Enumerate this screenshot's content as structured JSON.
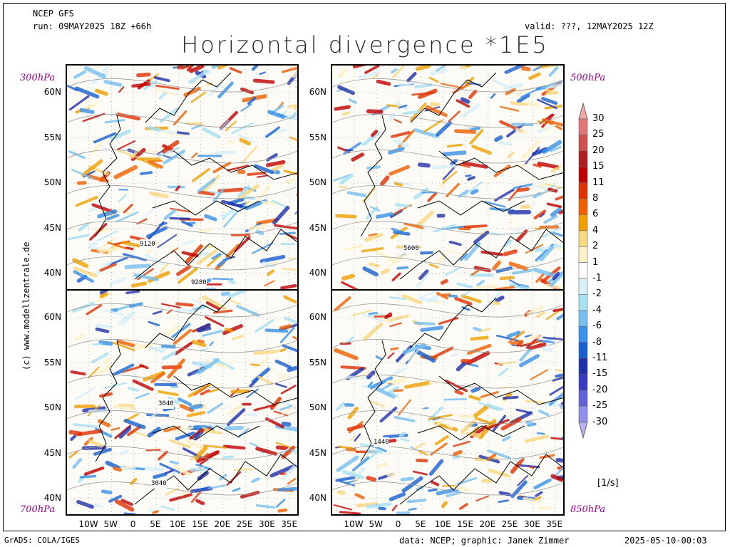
{
  "header": {
    "model": "NCEP GFS",
    "run": "run: 09MAY2025 18Z +66h",
    "valid": "valid: ???, 12MAY2025 12Z",
    "title": "Horizontal divergence *1E5"
  },
  "panels": [
    {
      "level": "300hPa",
      "contour_label": "9120",
      "contour_label2": "9280"
    },
    {
      "level": "500hPa",
      "contour_label": "5600"
    },
    {
      "level": "700hPa",
      "contour_label": "3040",
      "contour_label2": "3040"
    },
    {
      "level": "850hPa",
      "contour_label": "1440"
    }
  ],
  "lat_labels": [
    "60N",
    "55N",
    "50N",
    "45N",
    "40N"
  ],
  "lon_labels": [
    "10W",
    "5W",
    "0",
    "5E",
    "10E",
    "15E",
    "20E",
    "25E",
    "30E",
    "35E"
  ],
  "colorbar": {
    "labels": [
      "30",
      "25",
      "20",
      "15",
      "11",
      "8",
      "6",
      "4",
      "2",
      "1",
      "-1",
      "-2",
      "-4",
      "-6",
      "-8",
      "-11",
      "-15",
      "-20",
      "-25",
      "-30"
    ],
    "colors": [
      "#f0a8a8",
      "#e07878",
      "#d05050",
      "#b02020",
      "#c00000",
      "#e03000",
      "#f06000",
      "#f0a000",
      "#f8d880",
      "#fff2c8",
      "#ffffff",
      "#d8f0fa",
      "#a8e0f4",
      "#78c0f0",
      "#3890e8",
      "#1860d0",
      "#2030a8",
      "#3838c0",
      "#6060d8",
      "#9090ec",
      "#b8b0f4"
    ],
    "unit": "[1/s]"
  },
  "footer": {
    "left": "GrADS: COLA/IGES",
    "data": "data: NCEP; graphic: Janek Zimmer",
    "date": "2025-05-10-00:03"
  },
  "side_text": "(c) www.modellzentrale.de"
}
